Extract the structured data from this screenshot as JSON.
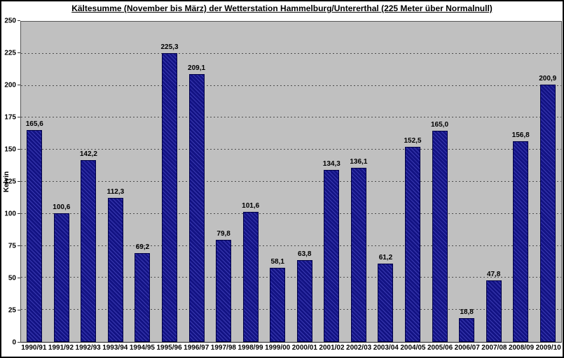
{
  "title": "Kältesumme (November bis März) der Wetterstation Hammelburg/Untererthal (225 Meter über Normalnull)",
  "y_axis_title": "Kelvin",
  "colors": {
    "bar_fill": "#16168C",
    "bar_hatch": "#3A3AB2",
    "bar_border": "#000048",
    "plot_background": "#C0C0C0",
    "gridline": "#4D4D4D",
    "outer_border": "#000000"
  },
  "chart_data": {
    "type": "bar",
    "title": "Kältesumme (November bis März) der Wetterstation Hammelburg/Untererthal (225 Meter über Normalnull)",
    "xlabel": "",
    "ylabel": "Kelvin",
    "ylim": [
      0,
      250
    ],
    "ytick_step": 25,
    "ytick_labels": [
      "0",
      "25",
      "50",
      "75",
      "100",
      "125",
      "150",
      "175",
      "200",
      "225",
      "250"
    ],
    "grid": "horizontal-dashed",
    "legend": "none",
    "categories": [
      "1990/91",
      "1991/92",
      "1992/93",
      "1993/94",
      "1994/95",
      "1995/96",
      "1996/97",
      "1997/98",
      "1998/99",
      "1999/00",
      "2000/01",
      "2001/02",
      "2002/03",
      "2003/04",
      "2004/05",
      "2005/06",
      "2006/07",
      "2007/08",
      "2008/09",
      "2009/10"
    ],
    "values": [
      165.6,
      100.6,
      142.2,
      112.3,
      69.2,
      225.3,
      209.1,
      79.8,
      101.6,
      58.1,
      63.8,
      134.3,
      136.1,
      61.2,
      152.5,
      165.0,
      18.8,
      47.8,
      156.8,
      200.9
    ],
    "value_labels": [
      "165,6",
      "100,6",
      "142,2",
      "112,3",
      "69,2",
      "225,3",
      "209,1",
      "79,8",
      "101,6",
      "58,1",
      "63,8",
      "134,3",
      "136,1",
      "61,2",
      "152,5",
      "165,0",
      "18,8",
      "47,8",
      "156,8",
      "200,9"
    ]
  }
}
